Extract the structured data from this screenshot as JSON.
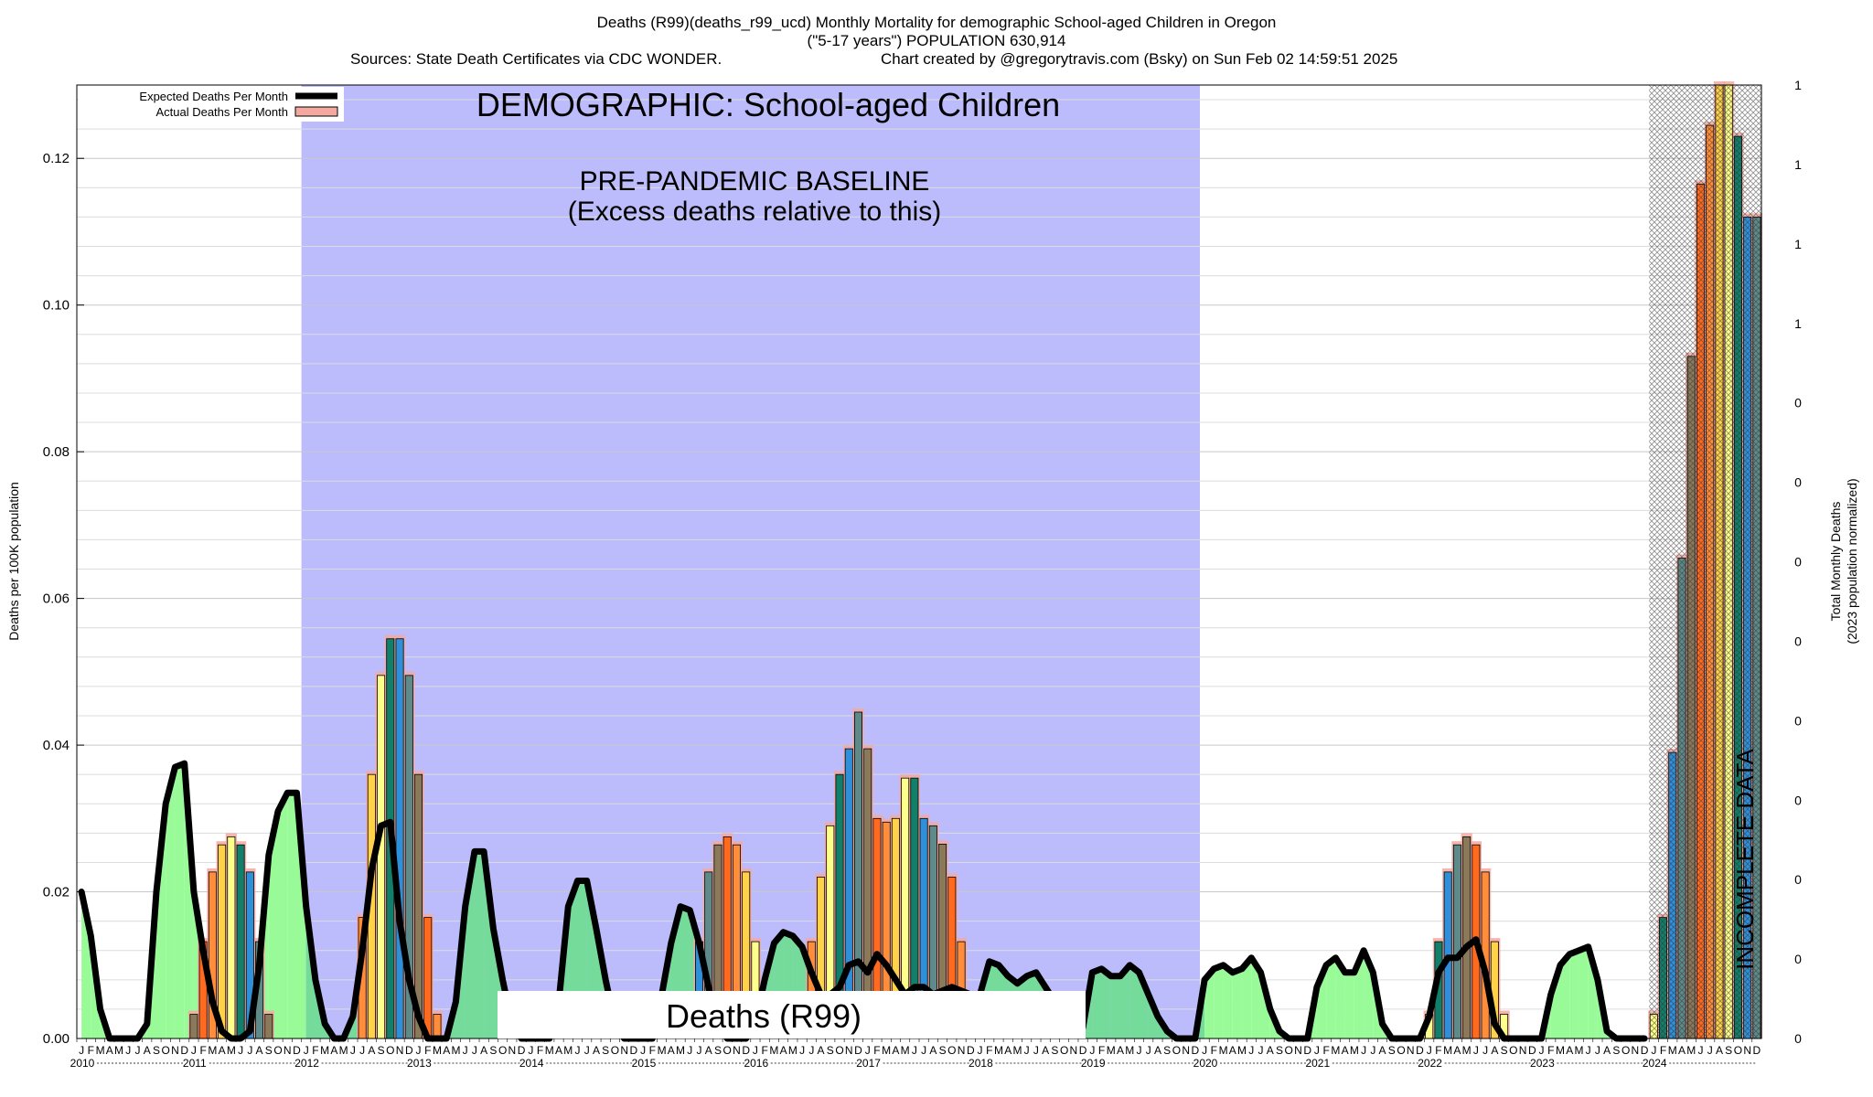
{
  "header": {
    "title_line1": "Deaths (R99)(deaths_r99_ucd) Monthly Mortality for demographic School-aged Children in Oregon",
    "title_line2": "(\"5-17 years\") POPULATION 630,914",
    "sources": "Sources: State Death Certificates via CDC WONDER.",
    "credit": "Chart created by @gregorytravis.com (Bsky) on Sun Feb 02 14:59:51 2025"
  },
  "annotations": {
    "demographic": "DEMOGRAPHIC: School-aged Children",
    "baseline_line1": "PRE-PANDEMIC BASELINE",
    "baseline_line2": "(Excess deaths relative to this)",
    "cause_box": "Deaths (R99)",
    "incomplete": "INCOMPLETE DATA"
  },
  "legend": {
    "expected": "Expected Deaths Per Month",
    "actual": "Actual Deaths Per Month"
  },
  "axes": {
    "y_left_label": "Deaths per 100K population",
    "y_right_label_line1": "Total Monthly Deaths",
    "y_right_label_line2": "(2023 population normalized)",
    "y_left_ticks": [
      "0.00",
      "0.02",
      "0.04",
      "0.06",
      "0.08",
      "0.10",
      "0.12"
    ],
    "y_right_ticks": [
      "0",
      "0",
      "0",
      "0",
      "0",
      "0",
      "0",
      "0",
      "0",
      "1",
      "1",
      "1",
      "1"
    ],
    "month_letters": [
      "J",
      "F",
      "M",
      "A",
      "M",
      "J",
      "J",
      "A",
      "S",
      "O",
      "N",
      "D"
    ],
    "years": [
      "2010",
      "2011",
      "2012",
      "2013",
      "2014",
      "2015",
      "2016",
      "2017",
      "2018",
      "2019",
      "2020",
      "2021",
      "2022",
      "2023",
      "2024"
    ]
  },
  "colors": {
    "baseline_band": "#bcbcfc",
    "green_fill": "#98fb98",
    "green_overlap": "#75db9b",
    "expected_line": "#000000",
    "actual_band": "#f4a9a0",
    "bar_palette": [
      "#ffff8c",
      "#ffd24a",
      "#ff8d3a",
      "#ff6a1e",
      "#8b7a5a",
      "#5f8a8a",
      "#2f8fd8",
      "#117f6a"
    ]
  },
  "chart_data": {
    "type": "bar",
    "title": "Deaths (R99)(deaths_r99_ucd) Monthly Mortality for demographic School-aged Children in Oregon",
    "ylabel": "Deaths per 100K population",
    "ylim": [
      0,
      0.13
    ],
    "y2label": "Total Monthly Deaths (2023 population normalized)",
    "x_start": "2010-01",
    "x_end": "2024-12",
    "baseline_period": [
      "2012-01",
      "2019-12"
    ],
    "incomplete_period": [
      "2024-01",
      "2024-12"
    ],
    "expected_series_name": "Expected Deaths Per Month",
    "actual_series_name": "Actual Deaths Per Month",
    "expected": [
      0.02,
      0.014,
      0.004,
      0.0,
      0.0,
      0.0,
      0.0,
      0.002,
      0.02,
      0.032,
      0.037,
      0.0375,
      0.02,
      0.012,
      0.005,
      0.001,
      0.0,
      0.0,
      0.001,
      0.01,
      0.025,
      0.031,
      0.0335,
      0.0335,
      0.018,
      0.008,
      0.002,
      0.0,
      0.0,
      0.003,
      0.012,
      0.023,
      0.029,
      0.0295,
      0.016,
      0.008,
      0.003,
      0.0,
      0.0,
      0.0,
      0.005,
      0.018,
      0.0255,
      0.0255,
      0.015,
      0.008,
      0.002,
      0.0,
      0.0,
      0.0,
      0.0,
      0.005,
      0.018,
      0.0215,
      0.0215,
      0.015,
      0.008,
      0.002,
      0.0,
      0.0,
      0.0,
      0.0,
      0.006,
      0.013,
      0.018,
      0.0175,
      0.013,
      0.007,
      0.002,
      0.0,
      0.0,
      0.0,
      0.002,
      0.008,
      0.013,
      0.0145,
      0.014,
      0.0125,
      0.009,
      0.006,
      0.006,
      0.007,
      0.01,
      0.0105,
      0.009,
      0.0115,
      0.01,
      0.008,
      0.006,
      0.007,
      0.007,
      0.006,
      0.0065,
      0.007,
      0.0065,
      0.006,
      0.006,
      0.0105,
      0.01,
      0.0085,
      0.0075,
      0.0085,
      0.009,
      0.007,
      0.005,
      0.0035,
      0.003,
      0.0015,
      0.009,
      0.0095,
      0.0085,
      0.0085,
      0.01,
      0.009,
      0.006,
      0.003,
      0.001,
      0.0,
      0.0,
      0.0,
      0.008,
      0.0095,
      0.01,
      0.009,
      0.0095,
      0.011,
      0.009,
      0.004,
      0.001,
      0.0,
      0.0,
      0.0,
      0.007,
      0.01,
      0.011,
      0.009,
      0.009,
      0.012,
      0.009,
      0.002,
      0.0,
      0.0,
      0.0,
      0.0,
      0.003,
      0.009,
      0.011,
      0.011,
      0.0125,
      0.0135,
      0.009,
      0.002,
      0.0,
      0.0,
      0.0,
      0.0,
      0.0,
      0.006,
      0.01,
      0.0115,
      0.012,
      0.0125,
      0.008,
      0.001,
      0.0,
      0.0,
      0.0,
      0.0
    ],
    "actual": [
      0,
      0,
      0,
      0,
      0,
      0,
      0,
      0,
      0,
      0,
      0,
      0,
      0.0033,
      0.0132,
      0.0227,
      0.0264,
      0.0275,
      0.0264,
      0.0227,
      0.0132,
      0.0033,
      0,
      0,
      0,
      0,
      0,
      0,
      0,
      0,
      0,
      0.0165,
      0.036,
      0.0495,
      0.0545,
      0.0545,
      0.0495,
      0.036,
      0.0165,
      0.0033,
      0,
      0,
      0,
      0,
      0,
      0,
      0,
      0,
      0,
      0,
      0,
      0,
      0,
      0,
      0,
      0,
      0,
      0,
      0,
      0,
      0,
      0,
      0,
      0,
      0,
      0,
      0,
      0.0132,
      0.0227,
      0.0264,
      0.0275,
      0.0264,
      0.0227,
      0.0132,
      0,
      0,
      0,
      0,
      0,
      0.0132,
      0.022,
      0.029,
      0.036,
      0.0395,
      0.0445,
      0.0395,
      0.03,
      0.0295,
      0.03,
      0.0355,
      0.0355,
      0.03,
      0.029,
      0.0265,
      0.022,
      0.0132,
      0,
      0,
      0,
      0,
      0,
      0,
      0,
      0,
      0,
      0,
      0,
      0,
      0,
      0,
      0,
      0,
      0,
      0,
      0,
      0,
      0,
      0,
      0,
      0,
      0,
      0,
      0,
      0,
      0,
      0,
      0,
      0,
      0,
      0,
      0,
      0,
      0,
      0,
      0,
      0,
      0,
      0,
      0,
      0,
      0,
      0,
      0,
      0,
      0,
      0.0033,
      0.0132,
      0.0227,
      0.0264,
      0.0275,
      0.0264,
      0.0227,
      0.0132,
      0.0033,
      0,
      0,
      0,
      0,
      0,
      0,
      0,
      0,
      0,
      0,
      0,
      0,
      0,
      0,
      0,
      0.0033,
      0.0165,
      0.039,
      0.0655,
      0.093,
      0.1165,
      0.1245,
      0.13,
      0.13,
      0.123,
      0.112,
      0.112
    ]
  }
}
